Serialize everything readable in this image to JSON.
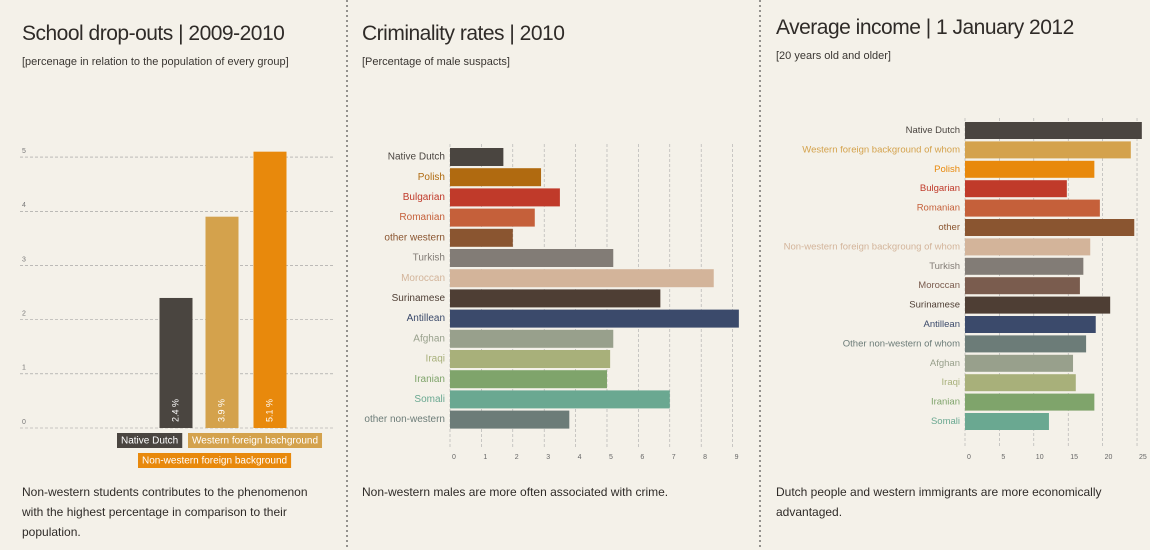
{
  "chart_data": [
    {
      "type": "bar",
      "title": "School drop-outs | 2009-2010",
      "subtitle": "[percenage in relation to the population of every group]",
      "categories": [
        "Native Dutch",
        "Western foreign bachground",
        "Non-western foreign background"
      ],
      "values": [
        2.4,
        3.9,
        5.1
      ],
      "value_labels": [
        "2.4 %",
        "3.9 %",
        "5.1 %"
      ],
      "colors": [
        "#4a4540",
        "#d4a24c",
        "#e8890c"
      ],
      "ylim": [
        0,
        5.5
      ],
      "yticks": [
        0,
        1,
        2,
        3,
        4,
        5
      ],
      "grid": true,
      "caption": "Non-western students contributes to the phenomenon with the highest percentage in comparison to their population."
    },
    {
      "type": "hbar",
      "title": "Criminality rates | 2010",
      "subtitle": "[Percentage of male suspacts]",
      "categories": [
        "Native Dutch",
        "Polish",
        "Bulgarian",
        "Romanian",
        "other western",
        "Turkish",
        "Moroccan",
        "Surinamese",
        "Antillean",
        "Afghan",
        "Iraqi",
        "Iranian",
        "Somali",
        "other non-western"
      ],
      "values": [
        1.7,
        2.9,
        3.5,
        2.7,
        2.0,
        5.2,
        8.4,
        6.7,
        9.2,
        5.2,
        5.1,
        5.0,
        7.0,
        3.8
      ],
      "colors": [
        "#4a4540",
        "#b06a10",
        "#c03a2a",
        "#c5603a",
        "#8a5530",
        "#827c76",
        "#d3b49a",
        "#4e3e34",
        "#3b4a6b",
        "#98a08c",
        "#a8b07a",
        "#7fa46b",
        "#6aa891",
        "#6c7c78"
      ],
      "xlim": [
        0,
        9.3
      ],
      "xticks": [
        0,
        1,
        2,
        3,
        4,
        5,
        6,
        7,
        8,
        9
      ],
      "grid": true,
      "caption": "Non-western males are more often associated with crime."
    },
    {
      "type": "hbar",
      "title": "Average income | 1 January 2012",
      "subtitle": "[20 years old and older]",
      "categories": [
        "Native Dutch",
        "Western foreign background of whom",
        "Polish",
        "Bulgarian",
        "Romanian",
        "other",
        "Non-western foreign backgroung of whom",
        "Turkish",
        "Moroccan",
        "Surinamese",
        "Antillean",
        "Other non-western of whom",
        "Afghan",
        "Iraqi",
        "Iranian",
        "Somali"
      ],
      "values": [
        25.7,
        24.1,
        18.8,
        14.8,
        19.6,
        24.6,
        18.2,
        17.2,
        16.7,
        21.1,
        19.0,
        17.6,
        15.7,
        16.1,
        18.8,
        12.2
      ],
      "colors": [
        "#4a4540",
        "#d4a24c",
        "#e8890c",
        "#c03a2a",
        "#c5603a",
        "#8a5530",
        "#d3b49a",
        "#827c76",
        "#7a5c4e",
        "#4e3e34",
        "#3b4a6b",
        "#6c7c78",
        "#98a08c",
        "#a8b07a",
        "#7fa46b",
        "#6aa891"
      ],
      "xlim": [
        0,
        26
      ],
      "xticks": [
        0,
        5,
        10,
        15,
        20,
        25
      ],
      "grid": true,
      "caption": "Dutch people and western immigrants are more economically advantaged."
    }
  ]
}
